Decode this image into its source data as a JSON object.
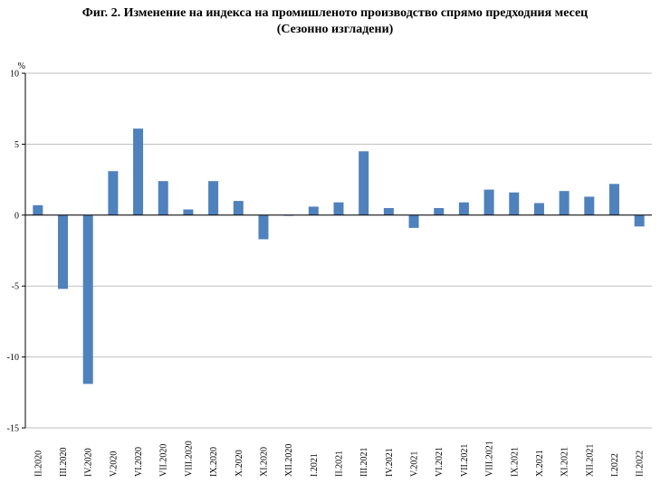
{
  "chart_data": {
    "type": "bar",
    "title_line1": "Фиг. 2. Изменение на индекса на промишленото производство спрямо предходния месец",
    "title_line2": "(Сезонно изгладени)",
    "ylabel": "%",
    "ylim": [
      -15,
      10
    ],
    "yticks": [
      10,
      5,
      0,
      -5,
      -10,
      -15
    ],
    "grid": true,
    "bar_color": "#4f81bd",
    "categories": [
      "II.2020",
      "III.2020",
      "IV.2020",
      "V.2020",
      "VI.2020",
      "VII.2020",
      "VIII.2020",
      "IX.2020",
      "X.2020",
      "XI.2020",
      "XII.2020",
      "I.2021",
      "II.2021",
      "III.2021",
      "IV.2021",
      "V.2021",
      "VI.2021",
      "VII.2021",
      "VIII.2021",
      "IX.2021",
      "X.2021",
      "XI.2021",
      "XII.2021",
      "I.2022",
      "II.2022"
    ],
    "values": [
      0.7,
      -5.2,
      -11.9,
      3.1,
      6.1,
      2.4,
      0.4,
      2.4,
      1.0,
      -1.7,
      -0.05,
      0.6,
      0.9,
      4.5,
      0.5,
      -0.9,
      0.5,
      0.9,
      1.8,
      1.6,
      0.85,
      1.7,
      1.3,
      2.2,
      -0.8
    ]
  }
}
